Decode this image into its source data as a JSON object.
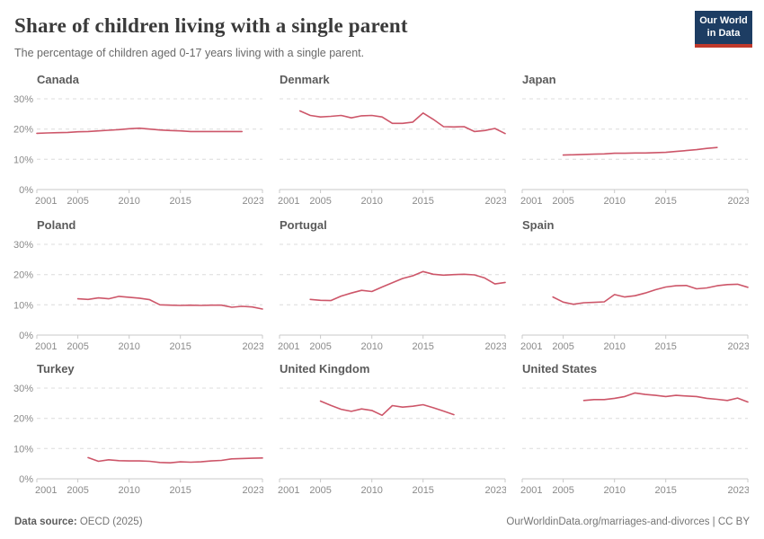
{
  "header": {
    "title": "Share of children living with a single parent",
    "subtitle": "The percentage of children aged 0-17 years living with a single parent.",
    "logo": {
      "line1": "Our World",
      "line2": "in Data"
    }
  },
  "footer": {
    "source_label": "Data source:",
    "source_value": " OECD (2025)",
    "right_text": "OurWorldinData.org/marriages-and-divorces | CC BY"
  },
  "colors": {
    "line": "#cd5669",
    "grid": "#dcdcdc",
    "axis": "#c9c9c9",
    "tick_label": "#8a8a8a",
    "logo_bg": "#1d3d63",
    "logo_stripe": "#c0392b"
  },
  "axes": {
    "x_ticks": [
      2001,
      2005,
      2010,
      2015,
      2023
    ],
    "x_range": [
      2001,
      2023
    ],
    "y_ticks": [
      0,
      10,
      20,
      30
    ],
    "y_range": [
      0,
      30
    ],
    "y_tick_suffix": "%",
    "grid": "dashed-horizontal",
    "legend": "none"
  },
  "chart_data": [
    {
      "type": "line",
      "title": "Canada",
      "show_y_labels": true,
      "x": [
        2001,
        2002,
        2003,
        2004,
        2005,
        2006,
        2007,
        2008,
        2009,
        2010,
        2011,
        2012,
        2013,
        2014,
        2015,
        2016,
        2017,
        2018,
        2019,
        2020,
        2021
      ],
      "values": [
        18.6,
        18.7,
        18.8,
        18.9,
        19.1,
        19.2,
        19.4,
        19.6,
        19.8,
        20.1,
        20.3,
        20.0,
        19.7,
        19.5,
        19.4,
        19.2,
        19.2,
        19.2,
        19.2,
        19.2,
        19.2
      ]
    },
    {
      "type": "line",
      "title": "Denmark",
      "show_y_labels": false,
      "x": [
        2003,
        2004,
        2005,
        2006,
        2007,
        2008,
        2009,
        2010,
        2011,
        2012,
        2013,
        2014,
        2015,
        2016,
        2017,
        2018,
        2019,
        2020,
        2021,
        2022,
        2023
      ],
      "values": [
        26.0,
        24.5,
        24.0,
        24.2,
        24.5,
        23.7,
        24.4,
        24.5,
        24.0,
        21.9,
        21.9,
        22.3,
        25.3,
        23.2,
        20.8,
        20.7,
        20.8,
        19.2,
        19.5,
        20.2,
        18.5
      ]
    },
    {
      "type": "line",
      "title": "Japan",
      "show_y_labels": false,
      "x": [
        2005,
        2006,
        2007,
        2008,
        2009,
        2010,
        2011,
        2012,
        2013,
        2014,
        2015,
        2016,
        2017,
        2018,
        2019,
        2020
      ],
      "values": [
        11.4,
        11.5,
        11.6,
        11.7,
        11.8,
        12.0,
        12.0,
        12.1,
        12.1,
        12.2,
        12.3,
        12.6,
        12.9,
        13.2,
        13.6,
        13.9
      ]
    },
    {
      "type": "line",
      "title": "Poland",
      "show_y_labels": true,
      "x": [
        2005,
        2006,
        2007,
        2008,
        2009,
        2010,
        2011,
        2012,
        2013,
        2014,
        2015,
        2016,
        2017,
        2018,
        2019,
        2020,
        2021,
        2022,
        2023
      ],
      "values": [
        12.0,
        11.8,
        12.3,
        12.0,
        12.8,
        12.5,
        12.2,
        11.7,
        10.0,
        9.9,
        9.8,
        9.9,
        9.8,
        9.9,
        9.9,
        9.2,
        9.5,
        9.3,
        8.6
      ]
    },
    {
      "type": "line",
      "title": "Portugal",
      "show_y_labels": false,
      "x": [
        2004,
        2005,
        2006,
        2007,
        2008,
        2009,
        2010,
        2011,
        2012,
        2013,
        2014,
        2015,
        2016,
        2017,
        2018,
        2019,
        2020,
        2021,
        2022,
        2023
      ],
      "values": [
        11.8,
        11.5,
        11.4,
        12.9,
        13.9,
        14.8,
        14.4,
        15.9,
        17.3,
        18.7,
        19.6,
        21.0,
        20.1,
        19.8,
        20.0,
        20.1,
        19.9,
        18.9,
        16.9,
        17.4
      ]
    },
    {
      "type": "line",
      "title": "Spain",
      "show_y_labels": false,
      "x": [
        2004,
        2005,
        2006,
        2007,
        2008,
        2009,
        2010,
        2011,
        2012,
        2013,
        2014,
        2015,
        2016,
        2017,
        2018,
        2019,
        2020,
        2021,
        2022,
        2023
      ],
      "values": [
        12.6,
        10.9,
        10.2,
        10.7,
        10.8,
        11.0,
        13.4,
        12.6,
        13.0,
        13.9,
        15.0,
        15.9,
        16.3,
        16.4,
        15.3,
        15.6,
        16.3,
        16.7,
        16.8,
        15.8
      ]
    },
    {
      "type": "line",
      "title": "Turkey",
      "show_y_labels": true,
      "x": [
        2006,
        2007,
        2008,
        2009,
        2010,
        2011,
        2012,
        2013,
        2014,
        2015,
        2016,
        2017,
        2018,
        2019,
        2020,
        2021,
        2022,
        2023
      ],
      "values": [
        7.0,
        5.8,
        6.3,
        6.0,
        5.9,
        5.9,
        5.8,
        5.4,
        5.3,
        5.6,
        5.5,
        5.6,
        5.9,
        6.1,
        6.6,
        6.7,
        6.8,
        6.9
      ]
    },
    {
      "type": "line",
      "title": "United Kingdom",
      "show_y_labels": false,
      "x": [
        2005,
        2006,
        2007,
        2008,
        2009,
        2010,
        2011,
        2012,
        2013,
        2014,
        2015,
        2016,
        2017,
        2018
      ],
      "values": [
        25.7,
        24.3,
        23.0,
        22.3,
        23.1,
        22.6,
        21.0,
        24.2,
        23.7,
        24.0,
        24.5,
        23.5,
        22.4,
        21.2
      ]
    },
    {
      "type": "line",
      "title": "United States",
      "show_y_labels": false,
      "x": [
        2007,
        2008,
        2009,
        2010,
        2011,
        2012,
        2013,
        2014,
        2015,
        2016,
        2017,
        2018,
        2019,
        2020,
        2021,
        2022,
        2023
      ],
      "values": [
        25.9,
        26.2,
        26.2,
        26.6,
        27.2,
        28.4,
        27.9,
        27.6,
        27.2,
        27.6,
        27.4,
        27.2,
        26.6,
        26.3,
        25.9,
        26.7,
        25.4
      ]
    }
  ]
}
